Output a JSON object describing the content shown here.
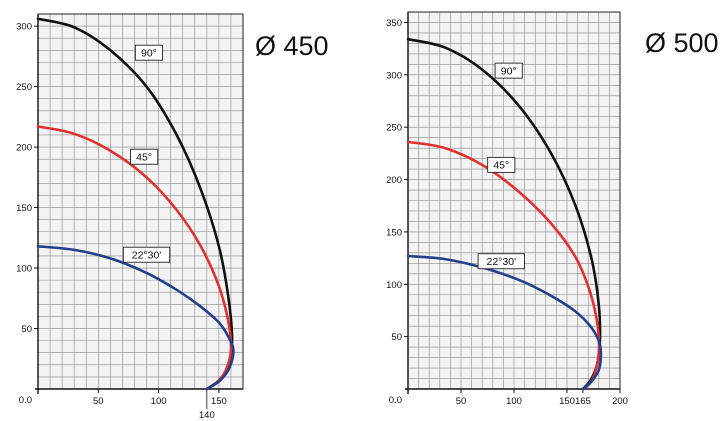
{
  "chart_data": [
    {
      "type": "line",
      "title": "Ø 450",
      "xlabel": "",
      "ylabel": "",
      "xlim": [
        0,
        165
      ],
      "ylim": [
        0,
        310
      ],
      "x_ticks": [
        "50",
        "100",
        "150"
      ],
      "y_ticks": [
        "50",
        "100",
        "150",
        "200",
        "250",
        "300"
      ],
      "origin_label": "0.0",
      "extra_x_tick": "140",
      "grid": true,
      "series": [
        {
          "name": "90°",
          "color": "#111111",
          "points": [
            [
              0,
              306
            ],
            [
              30,
              299
            ],
            [
              60,
              280
            ],
            [
              90,
              250
            ],
            [
              115,
              210
            ],
            [
              135,
              165
            ],
            [
              150,
              118
            ],
            [
              158,
              75
            ],
            [
              161,
              40
            ],
            [
              158,
              20
            ],
            [
              151,
              8
            ],
            [
              140,
              0
            ]
          ]
        },
        {
          "name": "45°",
          "color": "#e03030",
          "points": [
            [
              0,
              217
            ],
            [
              30,
              211
            ],
            [
              60,
              197
            ],
            [
              90,
              175
            ],
            [
              115,
              148
            ],
            [
              135,
              118
            ],
            [
              150,
              85
            ],
            [
              158,
              55
            ],
            [
              160,
              32
            ],
            [
              156,
              16
            ],
            [
              149,
              6
            ],
            [
              140,
              0
            ]
          ]
        },
        {
          "name": "22°30'",
          "color": "#24408a",
          "points": [
            [
              0,
              118
            ],
            [
              30,
              115
            ],
            [
              60,
              108
            ],
            [
              90,
              96
            ],
            [
              115,
              82
            ],
            [
              135,
              68
            ],
            [
              150,
              55
            ],
            [
              158,
              43
            ],
            [
              162,
              32
            ],
            [
              159,
              18
            ],
            [
              151,
              7
            ],
            [
              140,
              0
            ]
          ]
        }
      ],
      "labels": [
        {
          "text": "90°",
          "x": 92,
          "y": 278
        },
        {
          "text": "45°",
          "x": 88,
          "y": 192
        },
        {
          "text": "22°30'",
          "x": 90,
          "y": 111
        }
      ]
    },
    {
      "type": "line",
      "title": "Ø 500",
      "xlabel": "",
      "ylabel": "",
      "xlim": [
        0,
        200
      ],
      "ylim": [
        0,
        355
      ],
      "x_ticks": [
        "50",
        "100",
        "150",
        "165",
        "200"
      ],
      "y_ticks": [
        "50",
        "100",
        "150",
        "200",
        "250",
        "300",
        "350"
      ],
      "origin_label": "0.0",
      "grid": true,
      "series": [
        {
          "name": "90°",
          "color": "#111111",
          "points": [
            [
              0,
              334
            ],
            [
              35,
              326
            ],
            [
              70,
              305
            ],
            [
              105,
              270
            ],
            [
              135,
              225
            ],
            [
              158,
              175
            ],
            [
              173,
              125
            ],
            [
              180,
              80
            ],
            [
              181,
              45
            ],
            [
              178,
              22
            ],
            [
              172,
              8
            ],
            [
              165,
              0
            ]
          ]
        },
        {
          "name": "45°",
          "color": "#e03030",
          "points": [
            [
              0,
              236
            ],
            [
              35,
              230
            ],
            [
              70,
              214
            ],
            [
              105,
              188
            ],
            [
              135,
              158
            ],
            [
              158,
              126
            ],
            [
              172,
              92
            ],
            [
              179,
              60
            ],
            [
              180,
              35
            ],
            [
              177,
              17
            ],
            [
              172,
              6
            ],
            [
              165,
              0
            ]
          ]
        },
        {
          "name": "22°30'",
          "color": "#24408a",
          "points": [
            [
              0,
              127
            ],
            [
              35,
              124
            ],
            [
              70,
              116
            ],
            [
              105,
              104
            ],
            [
              135,
              89
            ],
            [
              158,
              74
            ],
            [
              172,
              60
            ],
            [
              180,
              46
            ],
            [
              182,
              33
            ],
            [
              180,
              18
            ],
            [
              173,
              7
            ],
            [
              165,
              0
            ]
          ]
        }
      ],
      "labels": [
        {
          "text": "90°",
          "x": 95,
          "y": 304
        },
        {
          "text": "45°",
          "x": 88,
          "y": 214
        },
        {
          "text": "22°30'",
          "x": 88,
          "y": 122
        }
      ]
    }
  ]
}
